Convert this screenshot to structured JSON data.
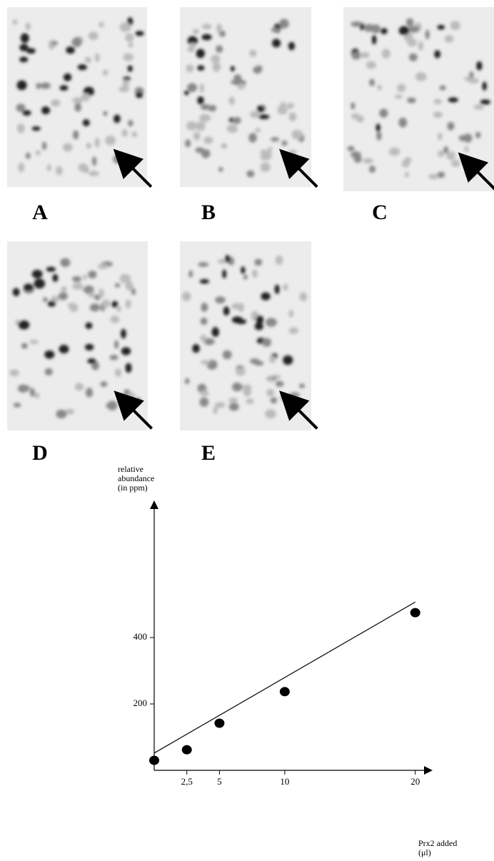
{
  "panels": [
    "A",
    "B",
    "C",
    "D",
    "E"
  ],
  "chart_data": {
    "type": "scatter",
    "ylabel": [
      "relative",
      "abundance",
      "(in ppm)"
    ],
    "xlabel": [
      "Prx2 added",
      "(μl)"
    ],
    "x": [
      0,
      2.5,
      5,
      10,
      20
    ],
    "values": [
      30,
      62,
      142,
      237,
      475
    ],
    "color": "#000000",
    "fit": {
      "x": [
        0,
        20
      ],
      "y": [
        52,
        507
      ]
    },
    "xlim": [
      0,
      21
    ],
    "ylim": [
      0,
      800
    ],
    "xticks": [
      {
        "value": 2.5,
        "label": "2,5"
      },
      5,
      10,
      20
    ],
    "yticks": [
      200,
      400
    ]
  }
}
